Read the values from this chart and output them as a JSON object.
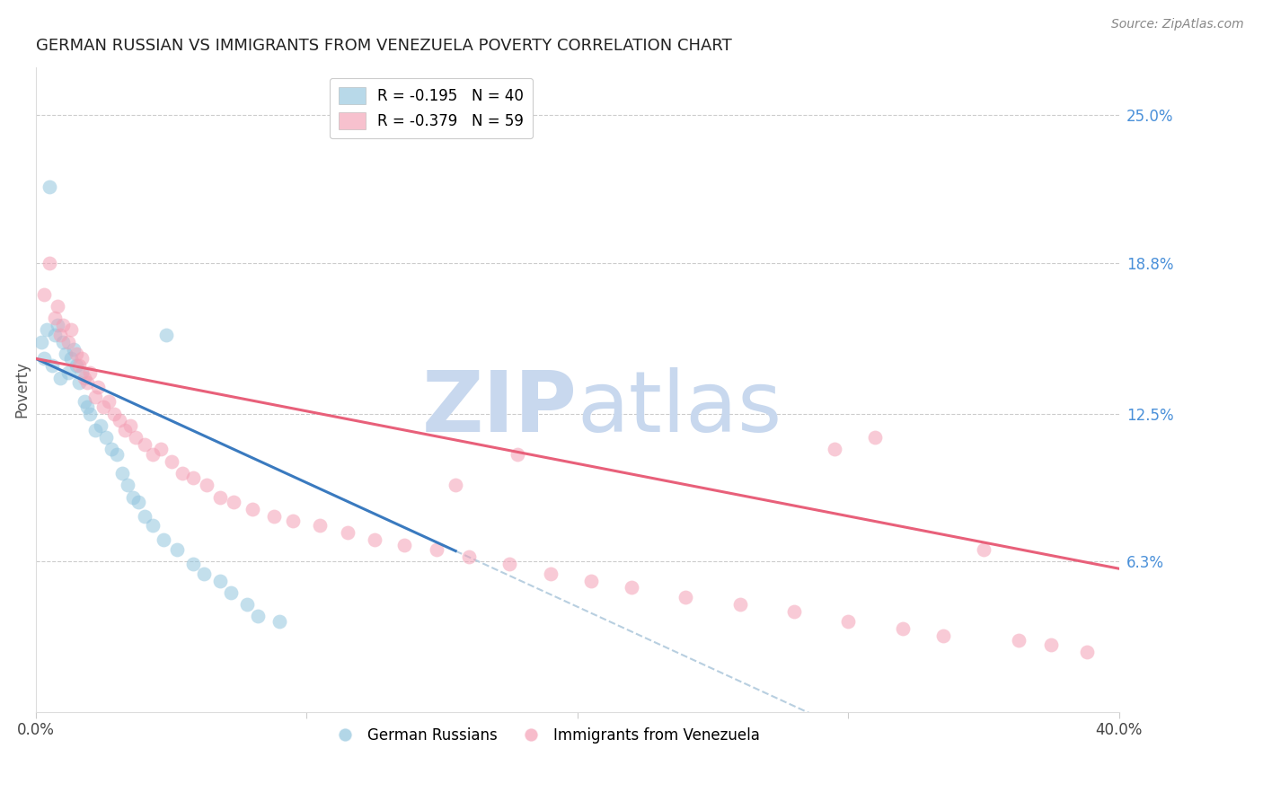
{
  "title": "GERMAN RUSSIAN VS IMMIGRANTS FROM VENEZUELA POVERTY CORRELATION CHART",
  "source": "Source: ZipAtlas.com",
  "ylabel": "Poverty",
  "right_yticks": [
    "25.0%",
    "18.8%",
    "12.5%",
    "6.3%"
  ],
  "right_ytick_vals": [
    0.25,
    0.188,
    0.125,
    0.063
  ],
  "legend1_label": "R = -0.195   N = 40",
  "legend2_label": "R = -0.379   N = 59",
  "blue_color": "#92c5de",
  "pink_color": "#f4a0b5",
  "blue_line_color": "#3a7abf",
  "pink_line_color": "#e8607a",
  "dashed_line_color": "#b8cfe0",
  "watermark_zip_color": "#c8d8ee",
  "watermark_atlas_color": "#c8d8ee",
  "blue_scatter_x": [
    0.002,
    0.003,
    0.004,
    0.005,
    0.006,
    0.007,
    0.008,
    0.009,
    0.01,
    0.011,
    0.012,
    0.013,
    0.014,
    0.015,
    0.016,
    0.017,
    0.018,
    0.019,
    0.02,
    0.022,
    0.024,
    0.026,
    0.028,
    0.03,
    0.032,
    0.034,
    0.036,
    0.038,
    0.04,
    0.043,
    0.047,
    0.052,
    0.058,
    0.062,
    0.068,
    0.072,
    0.078,
    0.082,
    0.09,
    0.048
  ],
  "blue_scatter_y": [
    0.155,
    0.148,
    0.16,
    0.22,
    0.145,
    0.158,
    0.162,
    0.14,
    0.155,
    0.15,
    0.142,
    0.148,
    0.152,
    0.145,
    0.138,
    0.142,
    0.13,
    0.128,
    0.125,
    0.118,
    0.12,
    0.115,
    0.11,
    0.108,
    0.1,
    0.095,
    0.09,
    0.088,
    0.082,
    0.078,
    0.072,
    0.068,
    0.062,
    0.058,
    0.055,
    0.05,
    0.045,
    0.04,
    0.038,
    0.158
  ],
  "pink_scatter_x": [
    0.003,
    0.005,
    0.007,
    0.008,
    0.009,
    0.01,
    0.012,
    0.013,
    0.015,
    0.016,
    0.017,
    0.018,
    0.019,
    0.02,
    0.022,
    0.023,
    0.025,
    0.027,
    0.029,
    0.031,
    0.033,
    0.035,
    0.037,
    0.04,
    0.043,
    0.046,
    0.05,
    0.054,
    0.058,
    0.063,
    0.068,
    0.073,
    0.08,
    0.088,
    0.095,
    0.105,
    0.115,
    0.125,
    0.136,
    0.148,
    0.16,
    0.175,
    0.19,
    0.205,
    0.22,
    0.24,
    0.26,
    0.28,
    0.3,
    0.32,
    0.335,
    0.35,
    0.363,
    0.375,
    0.388,
    0.31,
    0.295,
    0.178,
    0.155
  ],
  "pink_scatter_y": [
    0.175,
    0.188,
    0.165,
    0.17,
    0.158,
    0.162,
    0.155,
    0.16,
    0.15,
    0.145,
    0.148,
    0.14,
    0.138,
    0.142,
    0.132,
    0.136,
    0.128,
    0.13,
    0.125,
    0.122,
    0.118,
    0.12,
    0.115,
    0.112,
    0.108,
    0.11,
    0.105,
    0.1,
    0.098,
    0.095,
    0.09,
    0.088,
    0.085,
    0.082,
    0.08,
    0.078,
    0.075,
    0.072,
    0.07,
    0.068,
    0.065,
    0.062,
    0.058,
    0.055,
    0.052,
    0.048,
    0.045,
    0.042,
    0.038,
    0.035,
    0.032,
    0.068,
    0.03,
    0.028,
    0.025,
    0.115,
    0.11,
    0.108,
    0.095
  ],
  "xlim": [
    0.0,
    0.4
  ],
  "ylim": [
    0.0,
    0.27
  ],
  "blue_line_x": [
    0.0,
    0.155
  ],
  "blue_line_intercept": 0.148,
  "blue_line_slope": -0.52,
  "pink_line_x": [
    0.0,
    0.4
  ],
  "pink_line_intercept": 0.148,
  "pink_line_slope": -0.22,
  "dash_line_x": [
    0.155,
    0.4
  ],
  "xtick_positions": [
    0.0,
    0.1,
    0.2,
    0.3,
    0.4
  ],
  "xtick_labels": [
    "0.0%",
    "",
    "",
    "",
    "40.0%"
  ]
}
